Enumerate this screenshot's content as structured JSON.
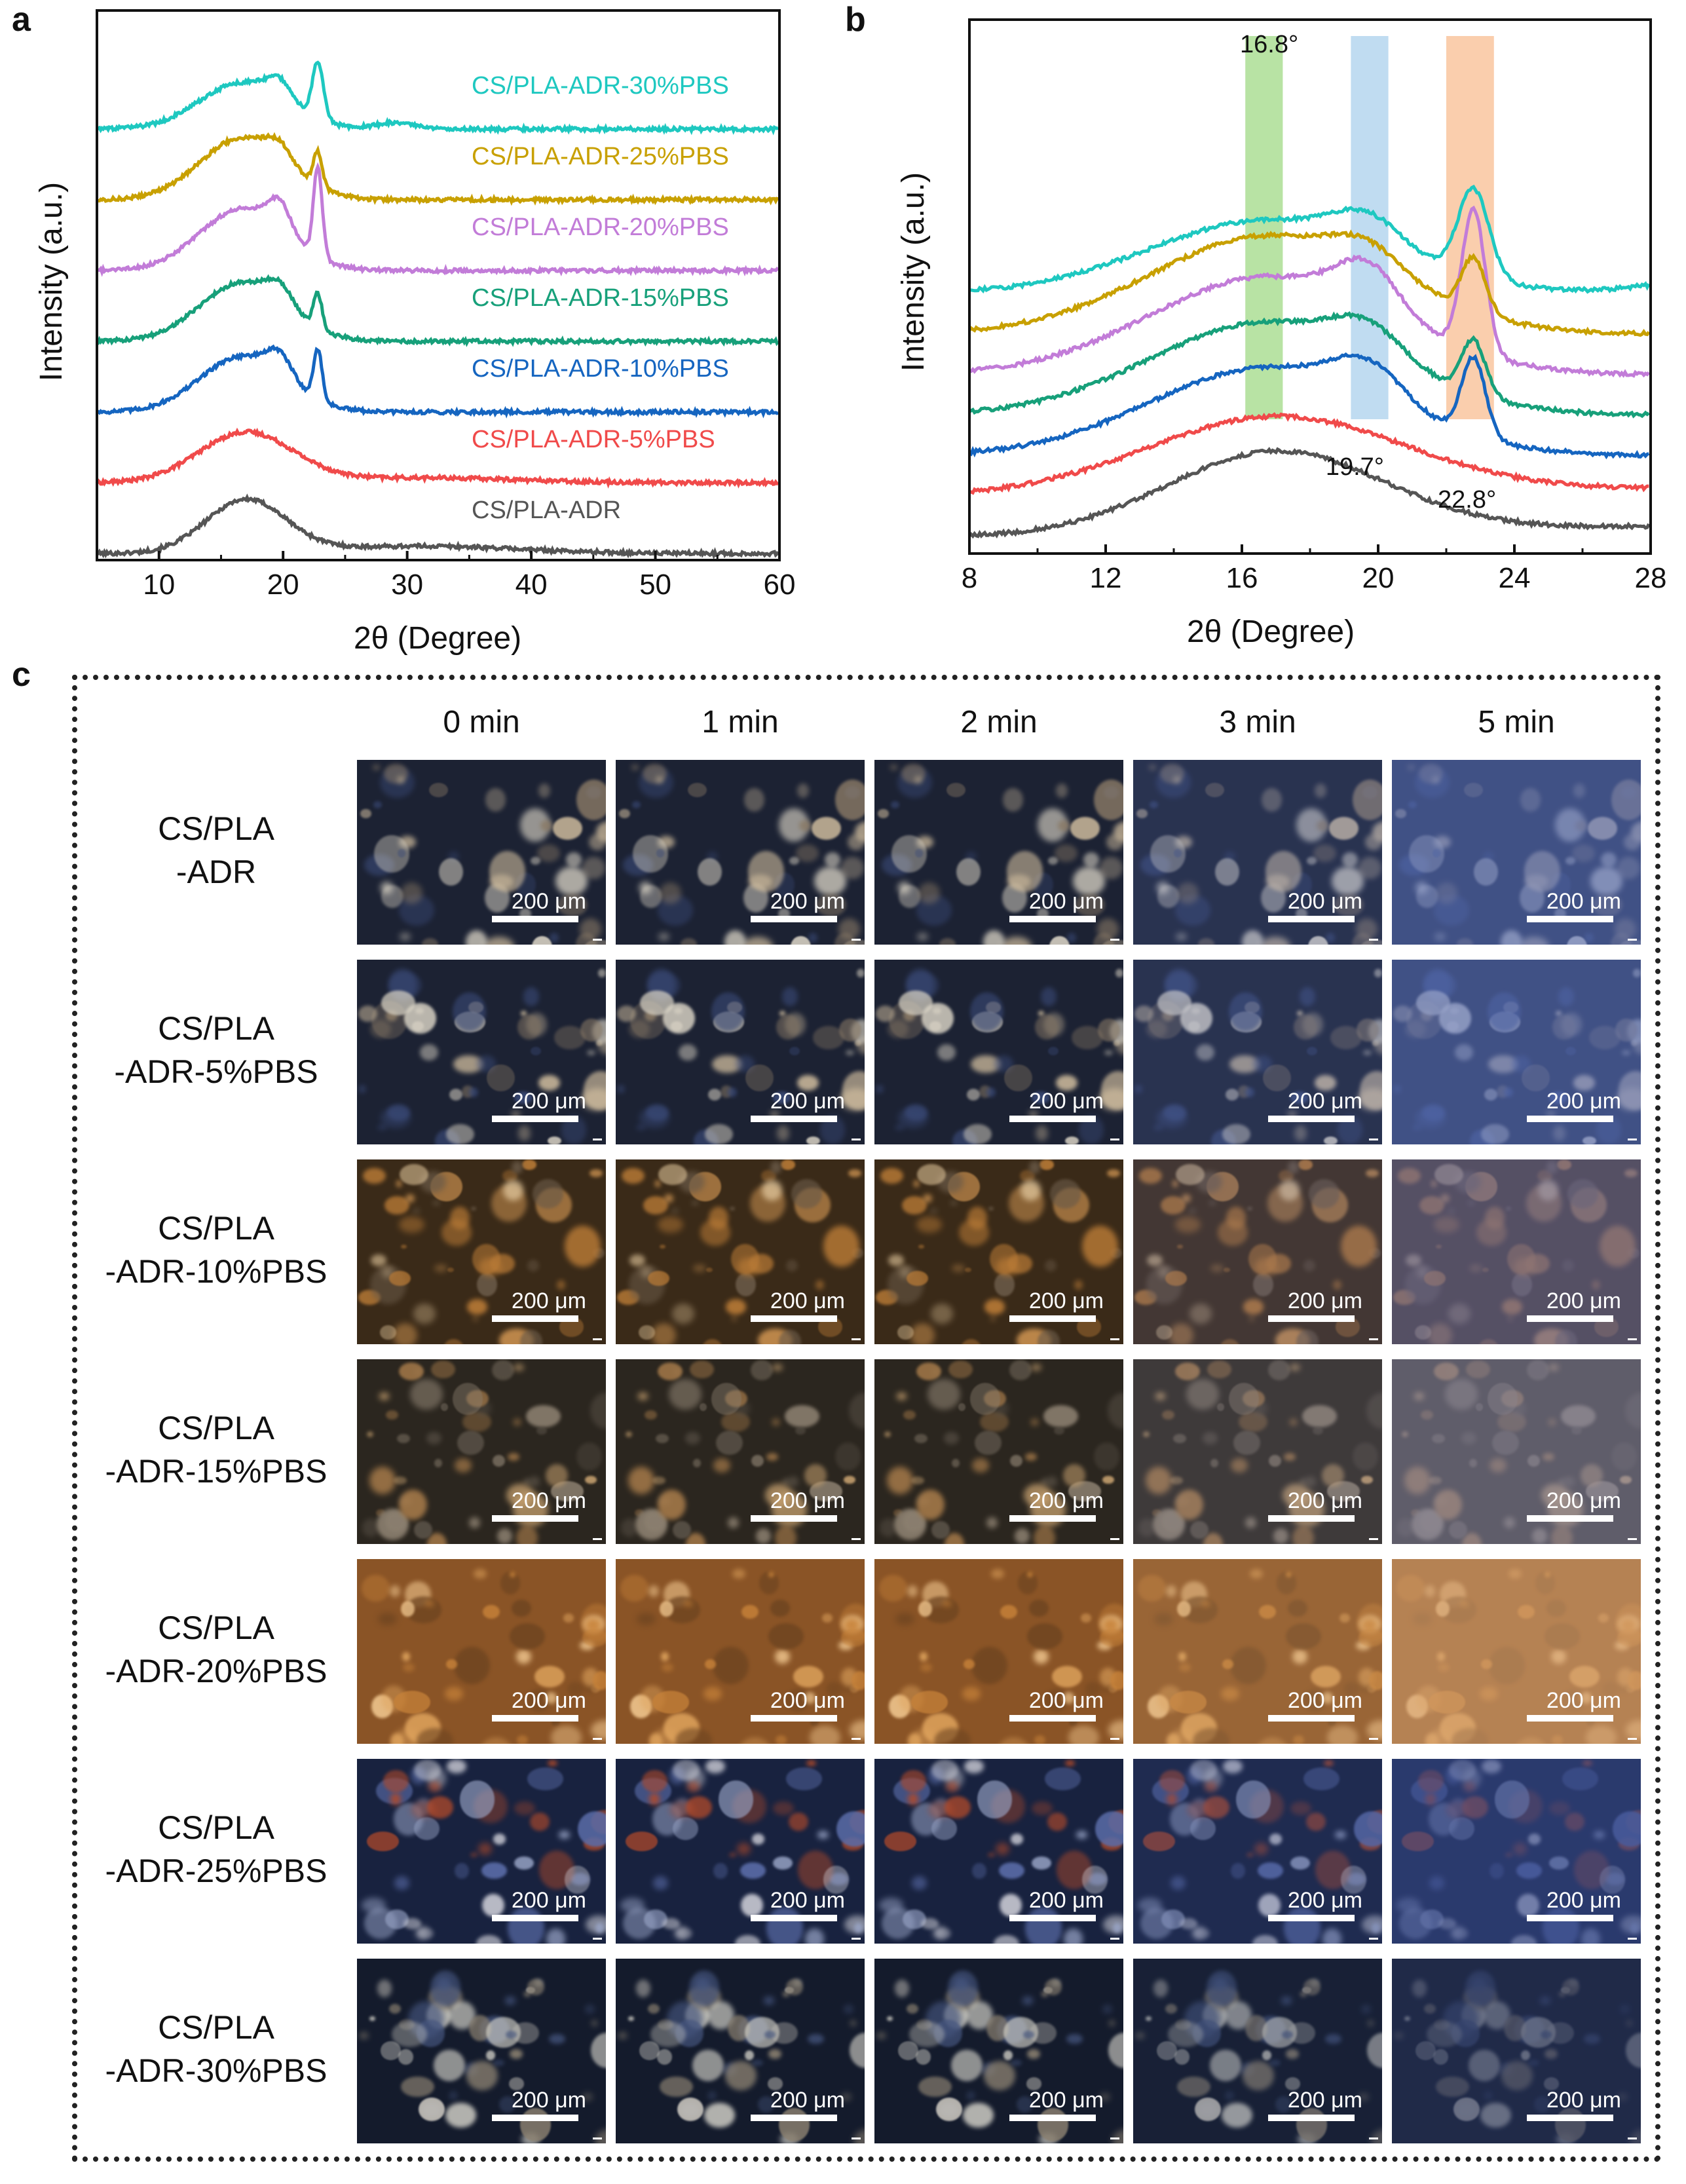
{
  "panels": {
    "a": "a",
    "b": "b",
    "c": "c"
  },
  "chart_data": [
    {
      "type": "line",
      "panel": "a",
      "xlabel": "2θ (Degree)",
      "ylabel": "Intensity (a.u.)",
      "xlim": [
        5,
        60
      ],
      "xticks": [
        10,
        20,
        30,
        40,
        50,
        60
      ],
      "series": [
        {
          "name": "CS/PLA-ADR",
          "color": "#555555",
          "offset": 0,
          "peaks": [
            [
              17,
              0.85,
              3.2
            ],
            [
              31,
              0.12,
              8
            ]
          ]
        },
        {
          "name": "CS/PLA-ADR-5%PBS",
          "color": "#f04a4a",
          "offset": 1,
          "peaks": [
            [
              17,
              0.8,
              3.8
            ],
            [
              31,
              0.08,
              8
            ]
          ]
        },
        {
          "name": "CS/PLA-ADR-10%PBS",
          "color": "#1565c0",
          "offset": 2,
          "peaks": [
            [
              16.8,
              0.9,
              3.5
            ],
            [
              19.7,
              0.35,
              1
            ],
            [
              22.8,
              0.8,
              0.35
            ]
          ]
        },
        {
          "name": "CS/PLA-ADR-15%PBS",
          "color": "#17a07a",
          "offset": 3,
          "peaks": [
            [
              16.8,
              0.95,
              3.5
            ],
            [
              19.7,
              0.3,
              1
            ],
            [
              22.8,
              0.55,
              0.35
            ]
          ]
        },
        {
          "name": "CS/PLA-ADR-20%PBS",
          "color": "#c27cd8",
          "offset": 4,
          "peaks": [
            [
              16.8,
              1.0,
              3.5
            ],
            [
              19.7,
              0.45,
              0.9
            ],
            [
              22.8,
              1.45,
              0.35
            ]
          ]
        },
        {
          "name": "CS/PLA-ADR-25%PBS",
          "color": "#c8a000",
          "offset": 5,
          "peaks": [
            [
              16.8,
              1.0,
              3.5
            ],
            [
              19.7,
              0.25,
              1
            ],
            [
              22.8,
              0.55,
              0.35
            ]
          ]
        },
        {
          "name": "CS/PLA-ADR-30%PBS",
          "color": "#1ec8c0",
          "offset": 6,
          "peaks": [
            [
              16.8,
              0.75,
              3.5
            ],
            [
              19.7,
              0.3,
              1
            ],
            [
              22.8,
              0.9,
              0.45
            ],
            [
              29,
              0.1,
              1.5
            ]
          ]
        }
      ]
    },
    {
      "type": "line",
      "panel": "b",
      "xlabel": "2θ (Degree)",
      "ylabel": "Intensity (a.u.)",
      "xlim": [
        8,
        28
      ],
      "xticks": [
        8,
        12,
        16,
        20,
        24,
        28
      ],
      "highlights": [
        {
          "center": 16.8,
          "label": "16.8°",
          "color": "#7dcc5a",
          "range": [
            16.1,
            17.2
          ]
        },
        {
          "center": 19.7,
          "label": "19.7°",
          "color": "#8cc0e6",
          "range": [
            19.2,
            20.3
          ]
        },
        {
          "center": 22.8,
          "label": "22.8°",
          "color": "#f6a56a",
          "range": [
            22.0,
            23.4
          ]
        }
      ]
    }
  ],
  "micrographs": {
    "time_headers": [
      "0 min",
      "1 min",
      "2 min",
      "3 min",
      "5 min"
    ],
    "scale_label": "200 μm",
    "rows": [
      {
        "label_line1": "CS/PLA",
        "label_line2": "-ADR",
        "tone": "dark-blue"
      },
      {
        "label_line1": "CS/PLA",
        "label_line2": "-ADR-5%PBS",
        "tone": "dark-blue"
      },
      {
        "label_line1": "CS/PLA",
        "label_line2": "-ADR-10%PBS",
        "tone": "amber-dark"
      },
      {
        "label_line1": "CS/PLA",
        "label_line2": "-ADR-15%PBS",
        "tone": "dark-brown"
      },
      {
        "label_line1": "CS/PLA",
        "label_line2": "-ADR-20%PBS",
        "tone": "orange"
      },
      {
        "label_line1": "CS/PLA",
        "label_line2": "-ADR-25%PBS",
        "tone": "navy"
      },
      {
        "label_line1": "CS/PLA",
        "label_line2": "-ADR-30%PBS",
        "tone": "navy-dark"
      }
    ]
  }
}
